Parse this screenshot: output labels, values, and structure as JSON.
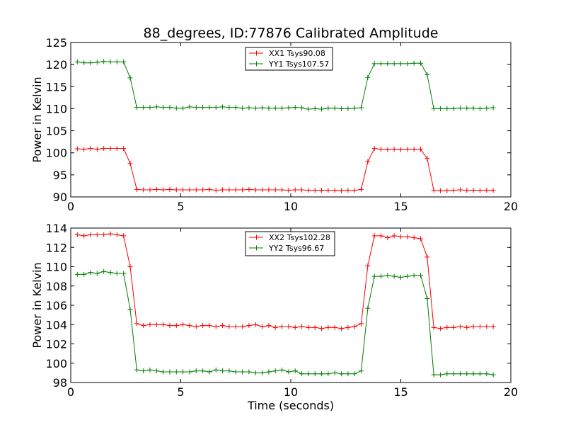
{
  "chart_data": [
    {
      "type": "line",
      "title": "88_degrees, ID:77876 Calibrated Amplitude",
      "xlabel": "",
      "ylabel": "Power in Kelvin",
      "xlim": [
        0,
        20
      ],
      "ylim": [
        90,
        125
      ],
      "xticks": [
        "0",
        "5",
        "10",
        "15",
        "20"
      ],
      "yticks": [
        "90",
        "95",
        "100",
        "105",
        "110",
        "115",
        "120",
        "125"
      ],
      "grid": false,
      "legend_position": "upper-center",
      "x": [
        0.3,
        0.6,
        0.9,
        1.2,
        1.5,
        1.8,
        2.1,
        2.4,
        2.7,
        3.0,
        3.3,
        3.6,
        3.9,
        4.2,
        4.5,
        4.8,
        5.1,
        5.4,
        5.7,
        6.0,
        6.3,
        6.6,
        6.9,
        7.2,
        7.5,
        7.8,
        8.1,
        8.4,
        8.7,
        9.0,
        9.3,
        9.6,
        9.9,
        10.2,
        10.5,
        10.8,
        11.1,
        11.4,
        11.7,
        12.0,
        12.3,
        12.6,
        12.9,
        13.2,
        13.5,
        13.8,
        14.1,
        14.4,
        14.7,
        15.0,
        15.3,
        15.6,
        15.9,
        16.2,
        16.5,
        16.8,
        17.1,
        17.4,
        17.7,
        18.0,
        18.3,
        18.6,
        18.9,
        19.2
      ],
      "series": [
        {
          "name": "XX1 Tsys90.08",
          "color": "#ff0000",
          "values": [
            100.9,
            100.8,
            101.0,
            100.8,
            101.0,
            101.0,
            101.0,
            101.0,
            97.6,
            91.7,
            91.6,
            91.6,
            91.7,
            91.6,
            91.7,
            91.6,
            91.6,
            91.6,
            91.6,
            91.6,
            91.7,
            91.5,
            91.6,
            91.6,
            91.6,
            91.6,
            91.7,
            91.6,
            91.6,
            91.6,
            91.6,
            91.6,
            91.5,
            91.6,
            91.6,
            91.5,
            91.5,
            91.5,
            91.5,
            91.5,
            91.4,
            91.5,
            91.5,
            91.7,
            98.0,
            101.0,
            100.8,
            100.7,
            100.8,
            100.7,
            100.8,
            100.8,
            100.8,
            98.7,
            91.5,
            91.4,
            91.4,
            91.5,
            91.6,
            91.5,
            91.5,
            91.5,
            91.5,
            91.5
          ]
        },
        {
          "name": "YY1 Tsys107.57",
          "color": "#008000",
          "values": [
            120.6,
            120.4,
            120.4,
            120.5,
            120.7,
            120.6,
            120.6,
            120.6,
            117.0,
            110.3,
            110.3,
            110.3,
            110.4,
            110.3,
            110.3,
            110.1,
            110.1,
            110.4,
            110.3,
            110.3,
            110.3,
            110.3,
            110.4,
            110.3,
            110.3,
            110.1,
            110.2,
            110.1,
            110.2,
            110.1,
            110.1,
            110.1,
            110.2,
            110.3,
            110.2,
            109.9,
            110.0,
            109.9,
            110.1,
            110.1,
            110.0,
            110.0,
            110.1,
            110.2,
            117.1,
            120.2,
            120.2,
            120.2,
            120.2,
            120.2,
            120.2,
            120.3,
            120.3,
            117.7,
            110.0,
            110.0,
            110.0,
            110.0,
            110.1,
            110.1,
            110.1,
            110.0,
            110.1,
            110.2
          ]
        }
      ]
    },
    {
      "type": "line",
      "title": "",
      "xlabel": "Time (seconds)",
      "ylabel": "Power in Kelvin",
      "xlim": [
        0,
        20
      ],
      "ylim": [
        98,
        114
      ],
      "xticks": [
        "0",
        "5",
        "10",
        "15",
        "20"
      ],
      "yticks": [
        "98",
        "100",
        "102",
        "104",
        "106",
        "108",
        "110",
        "112",
        "114"
      ],
      "grid": false,
      "legend_position": "upper-center",
      "x": [
        0.3,
        0.6,
        0.9,
        1.2,
        1.5,
        1.8,
        2.1,
        2.4,
        2.7,
        3.0,
        3.3,
        3.6,
        3.9,
        4.2,
        4.5,
        4.8,
        5.1,
        5.4,
        5.7,
        6.0,
        6.3,
        6.6,
        6.9,
        7.2,
        7.5,
        7.8,
        8.1,
        8.4,
        8.7,
        9.0,
        9.3,
        9.6,
        9.9,
        10.2,
        10.5,
        10.8,
        11.1,
        11.4,
        11.7,
        12.0,
        12.3,
        12.6,
        12.9,
        13.2,
        13.5,
        13.8,
        14.1,
        14.4,
        14.7,
        15.0,
        15.3,
        15.6,
        15.9,
        16.2,
        16.5,
        16.8,
        17.1,
        17.4,
        17.7,
        18.0,
        18.3,
        18.6,
        18.9,
        19.2
      ],
      "series": [
        {
          "name": "XX2 Tsys102.28",
          "color": "#ff0000",
          "values": [
            113.3,
            113.2,
            113.3,
            113.3,
            113.3,
            113.4,
            113.3,
            113.2,
            110.0,
            104.1,
            103.9,
            104.0,
            104.0,
            104.0,
            103.9,
            103.9,
            104.0,
            103.9,
            103.8,
            103.9,
            103.9,
            103.8,
            103.9,
            103.8,
            103.8,
            103.8,
            103.9,
            104.0,
            103.8,
            103.9,
            103.7,
            103.8,
            103.8,
            103.7,
            103.8,
            103.7,
            103.7,
            103.6,
            103.7,
            103.7,
            103.6,
            103.7,
            103.8,
            104.1,
            110.1,
            113.2,
            113.2,
            113.0,
            113.2,
            113.1,
            113.1,
            113.0,
            112.9,
            111.0,
            103.7,
            103.6,
            103.7,
            103.7,
            103.8,
            103.7,
            103.8,
            103.8,
            103.8,
            103.8
          ]
        },
        {
          "name": "YY2 Tsys96.67",
          "color": "#008000",
          "values": [
            109.2,
            109.2,
            109.4,
            109.3,
            109.5,
            109.4,
            109.3,
            109.3,
            105.6,
            99.3,
            99.2,
            99.3,
            99.2,
            99.1,
            99.1,
            99.1,
            99.1,
            99.1,
            99.2,
            99.2,
            99.1,
            99.3,
            99.2,
            99.2,
            99.1,
            99.1,
            99.1,
            99.0,
            99.0,
            99.1,
            99.2,
            99.3,
            99.1,
            99.2,
            98.9,
            98.9,
            98.9,
            98.9,
            98.9,
            99.0,
            98.9,
            98.9,
            98.9,
            99.2,
            105.7,
            109.0,
            109.0,
            109.1,
            109.0,
            108.9,
            109.0,
            109.1,
            109.1,
            106.7,
            98.8,
            98.8,
            98.9,
            98.9,
            98.9,
            98.9,
            98.9,
            98.9,
            98.9,
            98.8
          ]
        }
      ]
    }
  ]
}
